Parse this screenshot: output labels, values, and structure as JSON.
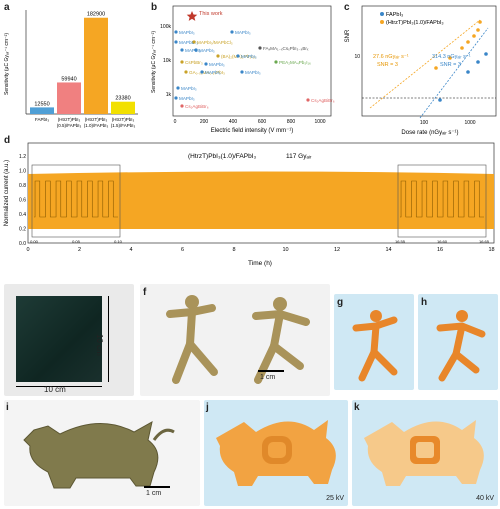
{
  "labels": {
    "a": "a",
    "b": "b",
    "c": "c",
    "d": "d",
    "e": "e",
    "f": "f",
    "g": "g",
    "h": "h",
    "i": "i",
    "j": "j",
    "k": "k"
  },
  "panel_a": {
    "ylabel": "Sensitivity (µC Gyₐᵢᵣ⁻¹ cm⁻²)",
    "bars": [
      {
        "value_label": "12550",
        "category": "FAPbI₃",
        "value": 12550,
        "color": "#4f9fd6"
      },
      {
        "value_label": "59940",
        "category": "(HtrzT)PbI₃ (0.5)/FAPbI₃",
        "value": 59940,
        "color": "#f08080"
      },
      {
        "value_label": "182900",
        "category": "(HtrzT)PbI₃ (1.0)/FAPbI₃",
        "value": 182900,
        "color": "#f5a623"
      },
      {
        "value_label": "23380",
        "category": "(HtrzT)PbI₃ (1.5)/FAPbI₃",
        "value": 23380,
        "color": "#f2e000"
      }
    ]
  },
  "panel_b": {
    "ylabel": "Sensitivity (µC Gyₐᵢᵣ⁻¹ cm⁻²)",
    "xlabel": "Electric field intensity (V mm⁻¹)",
    "yticks": [
      "1k",
      "10k",
      "100k"
    ],
    "xticks": [
      "0",
      "200",
      "400",
      "600",
      "800",
      "1000"
    ],
    "this_work": "This work",
    "points": [
      {
        "name": "MAPbI₃",
        "color": "#3a86c8"
      },
      {
        "name": "MAPbBr₃",
        "color": "#3a86c8"
      },
      {
        "name": "MAPbI₃",
        "color": "#3a86c8"
      },
      {
        "name": "MAPbI₃",
        "color": "#3a86c8"
      },
      {
        "name": "MAPbI₃/MAPbCl₃",
        "color": "#c9a227"
      },
      {
        "name": "MAPbI₃",
        "color": "#3a86c8"
      },
      {
        "name": "FAₓMA₁₋ₓCsₓPbI₃₋ₓBrₓ",
        "color": "#555"
      },
      {
        "name": "(BA)₂(MA)₂Pb₃I₁₀",
        "color": "#c9a227"
      },
      {
        "name": "MAPbI₃",
        "color": "#3a86c8"
      },
      {
        "name": "CsPbBr₃",
        "color": "#c9a227"
      },
      {
        "name": "MAPbI₃",
        "color": "#3a86c8"
      },
      {
        "name": "PEA₂MA₄Pb₅I₁₆",
        "color": "#6aa84f"
      },
      {
        "name": "GA₀.₀₃MA₀.₉₇PbI₃",
        "color": "#c9a227"
      },
      {
        "name": "MAPbI₃",
        "color": "#3a86c8"
      },
      {
        "name": "MAPbI₃",
        "color": "#3a86c8"
      },
      {
        "name": "MAPbI₃",
        "color": "#3a86c8"
      },
      {
        "name": "MAPbI₃",
        "color": "#3a86c8"
      },
      {
        "name": "Cs₂AgBiBr₆",
        "color": "#e06666"
      },
      {
        "name": "Cs₂AgBiBr₆",
        "color": "#e06666"
      }
    ]
  },
  "panel_c": {
    "ylabel": "SNR",
    "xlabel": "Dose rate (nGyₐᵢᵣ s⁻¹)",
    "legend": [
      "FAPbI₃",
      "(HtrzT)PbI₃(1.0)/FAPbI₃"
    ],
    "ann1": "27.6 nGyₐᵢᵣ s⁻¹",
    "ann1b": "SNR = 3",
    "ann2": "314.3 nGyₐᵢᵣ s⁻¹",
    "ann2b": "SNR = 3",
    "yticks": [
      "10"
    ],
    "xticks": [
      "100",
      "1000"
    ]
  },
  "panel_d": {
    "title": "(HtrzT)PbI₃(1.0)/FAPbI₃",
    "dose": "117 Gyₐᵢᵣ",
    "ylabel": "Normalized current (a.u.)",
    "xlabel": "Time (h)",
    "yticks": [
      "0.0",
      "0.2",
      "0.4",
      "0.6",
      "0.8",
      "1.0",
      "1.2"
    ],
    "xticks": [
      "0",
      "2",
      "4",
      "6",
      "8",
      "10",
      "12",
      "14",
      "16",
      "18"
    ],
    "inset1_ticks": [
      "0.00",
      "0.05",
      "0.10"
    ],
    "inset2_ticks": [
      "16.55",
      "16.60",
      "16.65"
    ],
    "color": "#f5a623"
  },
  "panel_e": {
    "dim_v": "10 cm",
    "dim_h": "10 cm"
  },
  "panel_f": {
    "scale": "1 cm"
  },
  "panel_i": {
    "scale": "1 cm"
  },
  "panel_j": {
    "kv": "25 kV"
  },
  "panel_k": {
    "kv": "40 kV"
  }
}
